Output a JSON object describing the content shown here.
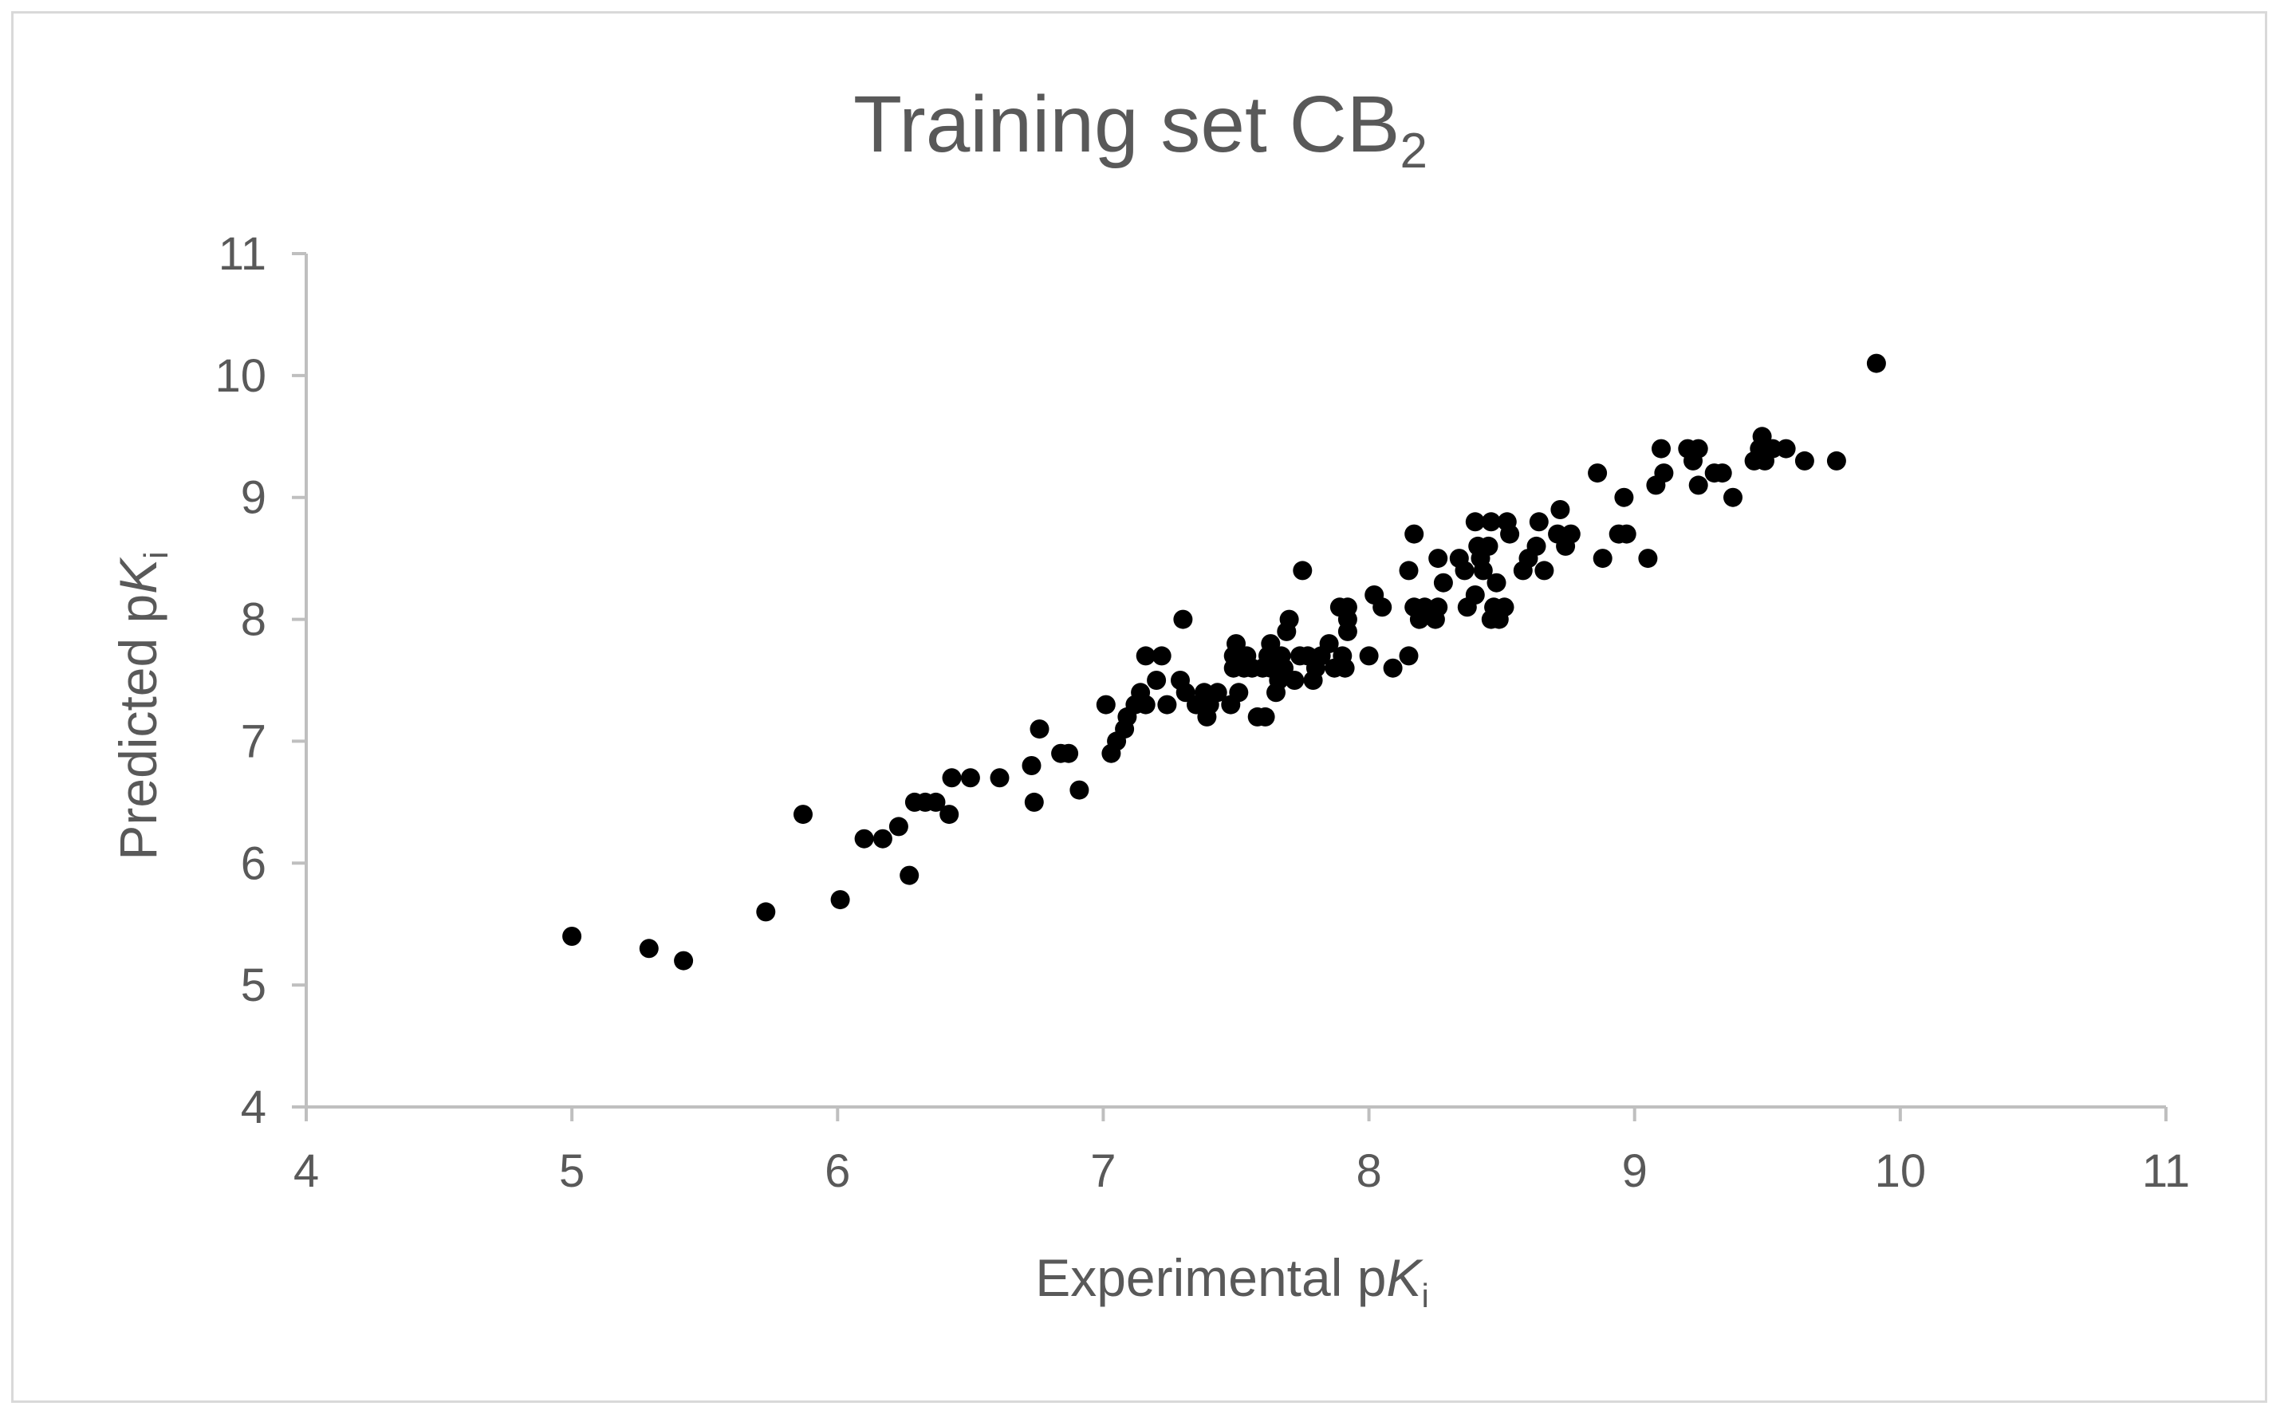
{
  "chart_data": {
    "type": "scatter",
    "title": "Training set CB",
    "title_subscript": "2",
    "xlabel": "Experimental p",
    "xlabel_italic": "K",
    "xlabel_subscript": "i",
    "ylabel": "Predicted p",
    "ylabel_italic": "K",
    "ylabel_subscript": "i",
    "xlim": [
      4,
      11
    ],
    "ylim": [
      4,
      11
    ],
    "xticks": [
      "4",
      "5",
      "6",
      "7",
      "8",
      "9",
      "10",
      "11"
    ],
    "yticks": [
      "4",
      "5",
      "6",
      "7",
      "8",
      "9",
      "10",
      "11"
    ],
    "grid": false,
    "legend": "none",
    "marker_color": "#000000",
    "axis_color": "#bfbfbf",
    "text_color": "#595959",
    "points": [
      [
        5.0,
        5.4
      ],
      [
        5.29,
        5.3
      ],
      [
        5.42,
        5.2
      ],
      [
        5.73,
        5.6
      ],
      [
        5.87,
        6.4
      ],
      [
        6.01,
        5.7
      ],
      [
        6.1,
        6.2
      ],
      [
        6.17,
        6.2
      ],
      [
        6.23,
        6.3
      ],
      [
        6.27,
        5.9
      ],
      [
        6.29,
        6.5
      ],
      [
        6.33,
        6.5
      ],
      [
        6.37,
        6.5
      ],
      [
        6.42,
        6.4
      ],
      [
        6.43,
        6.7
      ],
      [
        6.5,
        6.7
      ],
      [
        6.61,
        6.7
      ],
      [
        6.73,
        6.8
      ],
      [
        6.74,
        6.5
      ],
      [
        6.76,
        7.1
      ],
      [
        6.84,
        6.9
      ],
      [
        6.87,
        6.9
      ],
      [
        6.91,
        6.6
      ],
      [
        7.01,
        7.3
      ],
      [
        7.03,
        6.9
      ],
      [
        7.05,
        7.0
      ],
      [
        7.08,
        7.1
      ],
      [
        7.09,
        7.2
      ],
      [
        7.12,
        7.3
      ],
      [
        7.14,
        7.4
      ],
      [
        7.16,
        7.3
      ],
      [
        7.16,
        7.7
      ],
      [
        7.2,
        7.5
      ],
      [
        7.22,
        7.7
      ],
      [
        7.24,
        7.3
      ],
      [
        7.29,
        7.5
      ],
      [
        7.31,
        7.4
      ],
      [
        7.3,
        8.0
      ],
      [
        7.35,
        7.3
      ],
      [
        7.38,
        7.4
      ],
      [
        7.39,
        7.2
      ],
      [
        7.4,
        7.3
      ],
      [
        7.43,
        7.4
      ],
      [
        7.48,
        7.3
      ],
      [
        7.49,
        7.6
      ],
      [
        7.49,
        7.7
      ],
      [
        7.5,
        7.8
      ],
      [
        7.51,
        7.4
      ],
      [
        7.53,
        7.6
      ],
      [
        7.54,
        7.7
      ],
      [
        7.56,
        7.6
      ],
      [
        7.58,
        7.2
      ],
      [
        7.6,
        7.6
      ],
      [
        7.61,
        7.2
      ],
      [
        7.62,
        7.7
      ],
      [
        7.63,
        7.6
      ],
      [
        7.63,
        7.8
      ],
      [
        7.65,
        7.4
      ],
      [
        7.66,
        7.5
      ],
      [
        7.67,
        7.7
      ],
      [
        7.68,
        7.6
      ],
      [
        7.69,
        7.9
      ],
      [
        7.7,
        8.0
      ],
      [
        7.72,
        7.5
      ],
      [
        7.74,
        7.7
      ],
      [
        7.75,
        8.4
      ],
      [
        7.77,
        7.7
      ],
      [
        7.79,
        7.5
      ],
      [
        7.8,
        7.6
      ],
      [
        7.82,
        7.7
      ],
      [
        7.85,
        7.8
      ],
      [
        7.87,
        7.6
      ],
      [
        7.89,
        8.1
      ],
      [
        7.9,
        7.7
      ],
      [
        7.91,
        7.6
      ],
      [
        7.92,
        8.1
      ],
      [
        7.92,
        7.9
      ],
      [
        7.92,
        8.0
      ],
      [
        8.0,
        7.7
      ],
      [
        8.02,
        8.2
      ],
      [
        8.05,
        8.1
      ],
      [
        8.09,
        7.6
      ],
      [
        8.15,
        7.7
      ],
      [
        8.15,
        8.4
      ],
      [
        8.17,
        8.1
      ],
      [
        8.17,
        8.7
      ],
      [
        8.19,
        8.0
      ],
      [
        8.21,
        8.1
      ],
      [
        8.25,
        8.0
      ],
      [
        8.26,
        8.5
      ],
      [
        8.26,
        8.1
      ],
      [
        8.28,
        8.3
      ],
      [
        8.34,
        8.5
      ],
      [
        8.36,
        8.4
      ],
      [
        8.37,
        8.1
      ],
      [
        8.4,
        8.8
      ],
      [
        8.4,
        8.2
      ],
      [
        8.41,
        8.6
      ],
      [
        8.42,
        8.5
      ],
      [
        8.43,
        8.4
      ],
      [
        8.45,
        8.6
      ],
      [
        8.46,
        8.8
      ],
      [
        8.46,
        8.0
      ],
      [
        8.47,
        8.1
      ],
      [
        8.48,
        8.3
      ],
      [
        8.49,
        8.0
      ],
      [
        8.51,
        8.1
      ],
      [
        8.52,
        8.8
      ],
      [
        8.53,
        8.7
      ],
      [
        8.58,
        8.4
      ],
      [
        8.6,
        8.5
      ],
      [
        8.63,
        8.6
      ],
      [
        8.64,
        8.8
      ],
      [
        8.66,
        8.4
      ],
      [
        8.71,
        8.7
      ],
      [
        8.72,
        8.9
      ],
      [
        8.74,
        8.6
      ],
      [
        8.76,
        8.7
      ],
      [
        8.86,
        9.2
      ],
      [
        8.88,
        8.5
      ],
      [
        8.94,
        8.7
      ],
      [
        8.96,
        9.0
      ],
      [
        8.97,
        8.7
      ],
      [
        9.05,
        8.5
      ],
      [
        9.08,
        9.1
      ],
      [
        9.1,
        9.4
      ],
      [
        9.11,
        9.2
      ],
      [
        9.2,
        9.4
      ],
      [
        9.22,
        9.3
      ],
      [
        9.24,
        9.4
      ],
      [
        9.24,
        9.1
      ],
      [
        9.3,
        9.2
      ],
      [
        9.33,
        9.2
      ],
      [
        9.37,
        9.0
      ],
      [
        9.45,
        9.3
      ],
      [
        9.47,
        9.4
      ],
      [
        9.48,
        9.5
      ],
      [
        9.49,
        9.3
      ],
      [
        9.52,
        9.4
      ],
      [
        9.57,
        9.4
      ],
      [
        9.64,
        9.3
      ],
      [
        9.76,
        9.3
      ],
      [
        9.91,
        10.1
      ]
    ]
  }
}
